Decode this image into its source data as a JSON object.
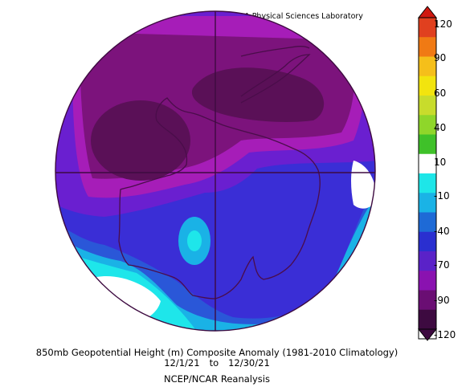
{
  "credit": "NOAA Physical Sciences Laboratory",
  "caption": {
    "title": "850mb Geopotential Height (m) Composite Anomaly (1981-2010 Climatology)",
    "date_start": "12/1/21",
    "date_sep": "to",
    "date_end": "12/30/21",
    "source": "NCEP/NCAR Reanalysis"
  },
  "colorbar": {
    "labels": [
      "120",
      "90",
      "60",
      "40",
      "10",
      "-10",
      "-40",
      "-70",
      "-90",
      "-120"
    ],
    "colors": [
      "#e0401f",
      "#f07a14",
      "#f5bf1a",
      "#f2e40e",
      "#c8dc2c",
      "#8fd62a",
      "#3fc129",
      "#ffffff",
      "#1ee6e8",
      "#1ab3e6",
      "#1e6ad6",
      "#2a2fd0",
      "#5a22c8",
      "#8a12b0",
      "#6a0e73",
      "#3d0a40"
    ],
    "end_top": "#d01810",
    "end_bottom": "#3d0a40"
  },
  "map": {
    "projection": "south-polar-stereographic",
    "region": "Antarctica",
    "anomaly_colors": {
      "dark_purple": "#5a1057",
      "purple": "#7c137c",
      "magenta": "#a61db8",
      "violet": "#6a1fd0",
      "blue": "#3a2ed6",
      "mid_blue": "#2a57d8",
      "light_blue": "#1ab2e6",
      "cyan": "#1ee6ea",
      "white": "#ffffff"
    }
  }
}
